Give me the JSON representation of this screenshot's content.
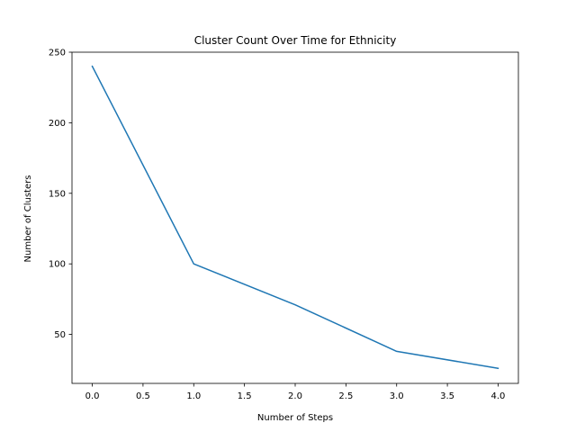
{
  "chart_data": {
    "type": "line",
    "title": "Cluster Count Over Time for Ethnicity",
    "xlabel": "Number of Steps",
    "ylabel": "Number of Clusters",
    "xlim": [
      -0.2,
      4.2
    ],
    "ylim": [
      15.3,
      250
    ],
    "x_ticks": [
      0.0,
      0.5,
      1.0,
      1.5,
      2.0,
      2.5,
      3.0,
      3.5,
      4.0
    ],
    "x_tick_labels": [
      "0.0",
      "0.5",
      "1.0",
      "1.5",
      "2.0",
      "2.5",
      "3.0",
      "3.5",
      "4.0"
    ],
    "y_ticks": [
      50,
      100,
      150,
      200,
      250
    ],
    "y_tick_labels": [
      "50",
      "100",
      "150",
      "200",
      "250"
    ],
    "grid": false,
    "series": [
      {
        "x": [
          0,
          1,
          2,
          3,
          4
        ],
        "values": [
          240,
          100,
          71,
          38,
          26
        ],
        "color": "#1f77b4"
      }
    ]
  }
}
